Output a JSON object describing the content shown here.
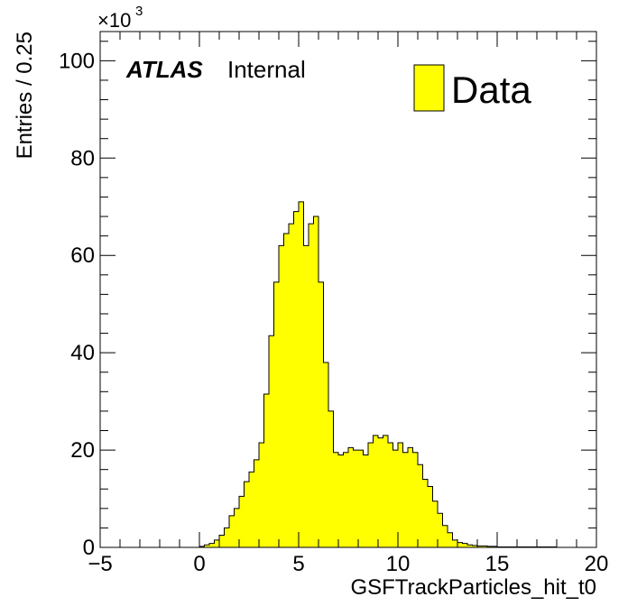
{
  "chart_data": {
    "type": "bar",
    "subtype": "histogram-step-filled",
    "xlabel": "GSFTrackParticles_hit_t0",
    "ylabel": "Entries / 0.25",
    "y_multiplier_label": "×10",
    "y_multiplier_exponent": "3",
    "xlim": [
      -5,
      20
    ],
    "ylim": [
      0,
      106
    ],
    "x_ticks": [
      -5,
      0,
      5,
      10,
      15,
      20
    ],
    "x_tick_labels": [
      "−5",
      "0",
      "5",
      "10",
      "15",
      "20"
    ],
    "y_ticks": [
      0,
      20,
      40,
      60,
      80,
      100
    ],
    "y_tick_labels": [
      "0",
      "20",
      "40",
      "60",
      "80",
      "100"
    ],
    "bin_width": 0.25,
    "bins_start": 0,
    "values": [
      0.2,
      0.5,
      0.8,
      1.5,
      2.5,
      4.0,
      6.5,
      8.0,
      10.5,
      13.5,
      15.5,
      18.0,
      21.5,
      31.5,
      43.5,
      54.5,
      62.0,
      64.5,
      66.5,
      69.0,
      71.0,
      62.0,
      66.5,
      68.0,
      54.5,
      38.0,
      28.0,
      19.5,
      19.0,
      19.5,
      20.5,
      20.0,
      20.0,
      19.0,
      21.5,
      23.0,
      22.5,
      23.0,
      21.5,
      20.0,
      21.5,
      19.5,
      20.5,
      19.5,
      17.0,
      14.0,
      12.5,
      9.5,
      7.0,
      4.5,
      3.0,
      1.5,
      1.0,
      0.8,
      0.5,
      0.4,
      0.3,
      0.3,
      0.2,
      0.2,
      0.1,
      0.1,
      0.1,
      0.1,
      0.1,
      0.1,
      0.1,
      0.1,
      0.1,
      0.1,
      0.1,
      0.1
    ],
    "series": [
      {
        "name": "Data",
        "color": "#ffff00",
        "edge_color": "#000000"
      }
    ],
    "legend_position": "top-right",
    "grid": false,
    "annotations": {
      "experiment": "ATLAS",
      "status": "Internal"
    }
  }
}
